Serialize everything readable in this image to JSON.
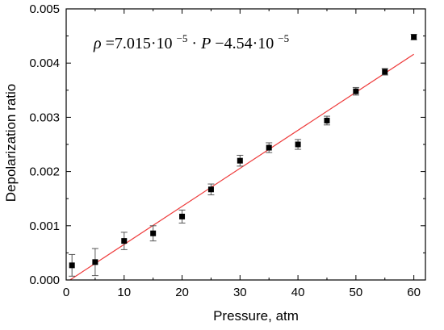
{
  "chart_data": {
    "type": "scatter",
    "xlabel": "Pressure, atm",
    "ylabel": "Depolarization ratio",
    "xlim": [
      0,
      62
    ],
    "ylim": [
      0,
      0.005
    ],
    "x_ticks": [
      0,
      10,
      20,
      30,
      40,
      50,
      60
    ],
    "x_tick_labels": [
      "0",
      "10",
      "20",
      "30",
      "40",
      "50",
      "60"
    ],
    "y_ticks": [
      0,
      0.001,
      0.002,
      0.003,
      0.004,
      0.005
    ],
    "y_tick_labels": [
      "0.000",
      "0.001",
      "0.002",
      "0.003",
      "0.004",
      "0.005"
    ],
    "series": [
      {
        "x": [
          1,
          5,
          10,
          15,
          20,
          25,
          30,
          35,
          40,
          45,
          50,
          55,
          60
        ],
        "y": [
          0.00027,
          0.00033,
          0.00072,
          0.00086,
          0.00117,
          0.00167,
          0.0022,
          0.00244,
          0.0025,
          0.00294,
          0.00348,
          0.00384,
          0.00448
        ],
        "error": [
          0.0002,
          0.00025,
          0.00016,
          0.00014,
          0.00012,
          0.0001,
          0.0001,
          9e-05,
          9e-05,
          8e-05,
          7e-05,
          6e-05,
          5e-05
        ]
      }
    ],
    "fit": {
      "slope": 7.015e-05,
      "intercept": -4.54e-05,
      "x_range": [
        0.65,
        60
      ],
      "equation": {
        "symbol": "ρ",
        "equals": "=7.015·10",
        "exp1": "−5",
        "middle": "·",
        "variable": "P",
        "minus": "−4.54·10",
        "exp2": "−5"
      }
    },
    "colors": {
      "fit_line": "#ee3b3b",
      "marker": "#000000",
      "error_bar": "#555555",
      "axis": "#000000"
    },
    "grid": false,
    "legend": "none"
  }
}
